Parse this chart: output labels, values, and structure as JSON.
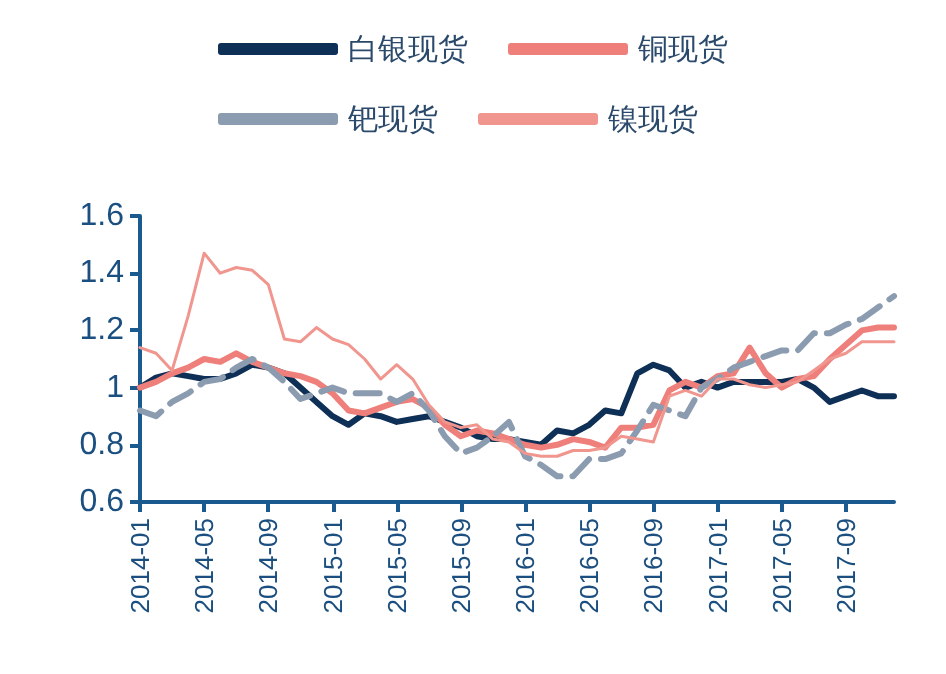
{
  "chart_data": {
    "type": "line",
    "categories": [
      "2014-01",
      null,
      null,
      null,
      "2014-05",
      null,
      null,
      null,
      "2014-09",
      null,
      null,
      null,
      "2015-01",
      null,
      null,
      null,
      "2015-05",
      null,
      null,
      null,
      "2015-09",
      null,
      null,
      null,
      "2016-01",
      null,
      null,
      null,
      "2016-05",
      null,
      null,
      null,
      "2016-09",
      null,
      null,
      null,
      "2017-01",
      null,
      null,
      null,
      "2017-05",
      null,
      null,
      null,
      "2017-09",
      null,
      null,
      null
    ],
    "series": [
      {
        "name": "白银现货",
        "color": "#0e2f56",
        "values": [
          1.0,
          1.035,
          1.05,
          1.04,
          1.03,
          1.03,
          1.05,
          1.08,
          1.07,
          1.05,
          1.0,
          0.95,
          0.9,
          0.87,
          0.91,
          0.9,
          0.88,
          0.89,
          0.9,
          0.88,
          0.86,
          0.83,
          0.82,
          0.82,
          0.81,
          0.8,
          0.85,
          0.84,
          0.87,
          0.92,
          0.91,
          1.05,
          1.08,
          1.06,
          1.0,
          1.02,
          1.0,
          1.02,
          1.02,
          1.02,
          1.02,
          1.03,
          1.0,
          0.95,
          0.97,
          0.99,
          0.97,
          0.97
        ]
      },
      {
        "name": "铜现货",
        "color": "#ee7f7a",
        "values": [
          1.0,
          1.02,
          1.05,
          1.07,
          1.1,
          1.09,
          1.12,
          1.09,
          1.07,
          1.05,
          1.04,
          1.02,
          0.98,
          0.92,
          0.91,
          0.93,
          0.95,
          0.96,
          0.93,
          0.87,
          0.83,
          0.85,
          0.84,
          0.82,
          0.8,
          0.79,
          0.8,
          0.82,
          0.81,
          0.79,
          0.86,
          0.86,
          0.87,
          0.99,
          1.02,
          1.0,
          1.04,
          1.05,
          1.14,
          1.05,
          1.0,
          1.03,
          1.04,
          1.1,
          1.15,
          1.2,
          1.21,
          1.21
        ]
      },
      {
        "name": "钯现货",
        "color": "#8b9bb0",
        "line_style": "dashed",
        "values": [
          0.92,
          0.9,
          0.95,
          0.98,
          1.02,
          1.03,
          1.07,
          1.1,
          1.07,
          1.02,
          0.96,
          0.98,
          1.0,
          0.98,
          0.98,
          0.98,
          0.95,
          0.98,
          0.92,
          0.83,
          0.77,
          0.79,
          0.83,
          0.88,
          0.76,
          0.73,
          0.69,
          0.69,
          0.75,
          0.75,
          0.77,
          0.85,
          0.94,
          0.92,
          0.9,
          1.0,
          1.03,
          1.07,
          1.09,
          1.11,
          1.13,
          1.13,
          1.19,
          1.19,
          1.22,
          1.24,
          1.28,
          1.32
        ]
      },
      {
        "name": "镍现货",
        "color": "#f0968e",
        "values": [
          1.14,
          1.12,
          1.06,
          1.25,
          1.47,
          1.4,
          1.42,
          1.41,
          1.36,
          1.17,
          1.16,
          1.21,
          1.17,
          1.15,
          1.1,
          1.03,
          1.08,
          1.03,
          0.94,
          0.88,
          0.86,
          0.87,
          0.82,
          0.81,
          0.77,
          0.76,
          0.76,
          0.78,
          0.78,
          0.79,
          0.83,
          0.82,
          0.81,
          0.97,
          0.99,
          0.97,
          1.03,
          1.03,
          1.01,
          1.0,
          1.01,
          1.02,
          1.06,
          1.1,
          1.12,
          1.16,
          1.16,
          1.16
        ]
      }
    ],
    "ylim": [
      0.6,
      1.6
    ],
    "yticks": [
      0.6,
      0.8,
      1,
      1.2,
      1.4,
      1.6
    ],
    "grid": false,
    "legend": "top",
    "line_style": "solid",
    "marker": "none"
  }
}
